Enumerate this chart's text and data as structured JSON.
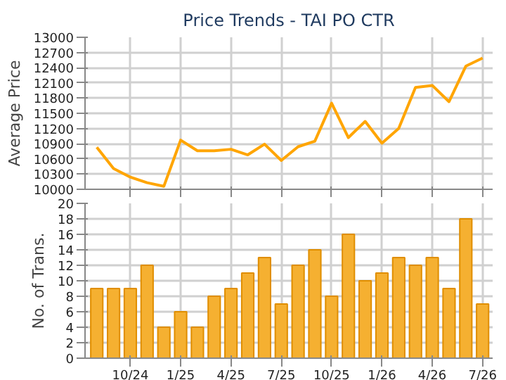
{
  "chart_data": [
    {
      "type": "line",
      "title": "Price Trends - TAI PO CTR",
      "ylabel": "Average Price",
      "categories": [
        null,
        null,
        null,
        null,
        null,
        null,
        null,
        null,
        null,
        null,
        null,
        null,
        null,
        null,
        null,
        null,
        null,
        null,
        null,
        null,
        null,
        null,
        null,
        null
      ],
      "series": [
        {
          "color": "#ffa500",
          "values": [
            10830,
            10410,
            10240,
            10130,
            10060,
            10970,
            10760,
            10760,
            10790,
            10680,
            10890,
            10570,
            10840,
            10950,
            11700,
            11020,
            11340,
            10910,
            11200,
            12010,
            12050,
            11730,
            12430,
            12590
          ]
        }
      ],
      "ylim": [
        10000,
        13000
      ],
      "yticks": [
        10000,
        10300,
        10600,
        10900,
        11200,
        11500,
        11800,
        12100,
        12400,
        12700,
        13000
      ],
      "grid": true,
      "tick_labels": "y",
      "marker": "none",
      "line_style": "solid"
    },
    {
      "type": "bar",
      "ylabel": "No. of Trans.",
      "categories": [
        null,
        null,
        "10/24",
        null,
        null,
        "1/25",
        null,
        null,
        "4/25",
        null,
        null,
        "7/25",
        null,
        null,
        "10/25",
        null,
        null,
        "1/26",
        null,
        null,
        "4/26",
        null,
        null,
        "7/26"
      ],
      "series": [
        {
          "color": "#f5b031",
          "values": [
            9,
            9,
            9,
            12,
            4,
            6,
            4,
            8,
            9,
            11,
            13,
            7,
            12,
            14,
            8,
            16,
            10,
            11,
            13,
            12,
            13,
            9,
            18,
            7
          ]
        }
      ],
      "ylim": [
        0,
        20
      ],
      "yticks": [
        0,
        2,
        4,
        6,
        8,
        10,
        12,
        14,
        16,
        18,
        20
      ],
      "grid": true
    }
  ]
}
